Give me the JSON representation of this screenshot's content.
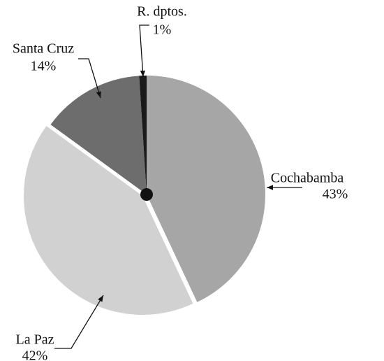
{
  "chart_data": {
    "type": "pie",
    "categories": [
      "Cochabamba",
      "La Paz",
      "Santa Cruz",
      "R. dptos."
    ],
    "values": [
      43,
      42,
      14,
      1
    ],
    "value_labels": [
      "43%",
      "42%",
      "14%",
      "1%"
    ],
    "colors": [
      "#a6a6a6",
      "#d1d1d1",
      "#6d6d6d",
      "#1a1a1a"
    ]
  }
}
